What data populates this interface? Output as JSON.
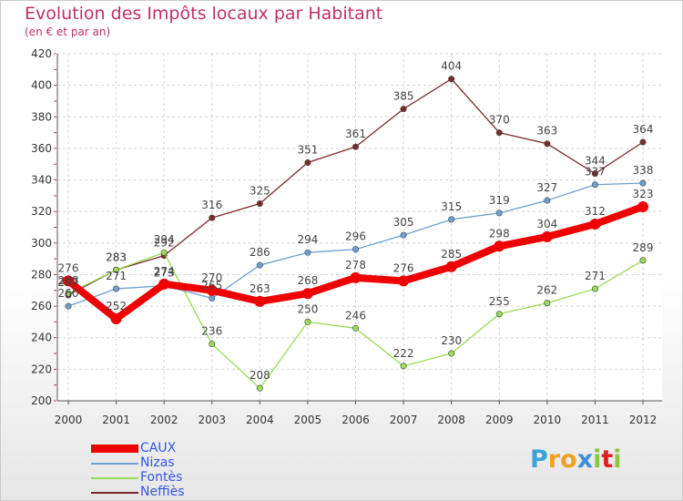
{
  "title": "Evolution des Impôts locaux par Habitant",
  "subtitle": "(en € et par an)",
  "logo": {
    "letters": [
      "P",
      "r",
      "o",
      "x",
      "i",
      "t",
      "i"
    ],
    "colors": [
      "#3aa3d8",
      "#f0a020",
      "#f0a020",
      "#3a8fd8",
      "#8cc63e",
      "#e02020",
      "#8cc63e"
    ]
  },
  "chart_data": {
    "type": "line",
    "x": [
      "2000",
      "2001",
      "2002",
      "2003",
      "2004",
      "2005",
      "2006",
      "2007",
      "2008",
      "2009",
      "2010",
      "2011",
      "2012"
    ],
    "ylim": [
      200,
      420
    ],
    "yticks": [
      "200",
      "220",
      "240",
      "260",
      "280",
      "300",
      "320",
      "340",
      "360",
      "380",
      "400",
      "420"
    ],
    "grid": true,
    "legend_position": "bottom-left",
    "series": [
      {
        "name": "Neffiès",
        "color": "#7a2a2a",
        "values": [
          267,
          283,
          292,
          316,
          325,
          351,
          361,
          385,
          404,
          370,
          363,
          344,
          364
        ],
        "labels": [
          "267",
          "283",
          "292",
          "316",
          "325",
          "351",
          "361",
          "385",
          "404",
          "370",
          "363",
          "344",
          "364"
        ]
      },
      {
        "name": "Fontès",
        "color": "#99dd55",
        "values": [
          268,
          283,
          294,
          236,
          208,
          250,
          246,
          222,
          230,
          255,
          262,
          271,
          289
        ],
        "labels": [
          "268",
          "283",
          "294",
          "236",
          "208",
          "250",
          "246",
          "222",
          "230",
          "255",
          "262",
          "271",
          "289"
        ]
      },
      {
        "name": "Nizas",
        "color": "#6ea0d0",
        "values": [
          260,
          271,
          273,
          265,
          286,
          294,
          296,
          305,
          315,
          319,
          327,
          337,
          338
        ],
        "labels": [
          "260",
          "271",
          "273",
          "265",
          "286",
          "294",
          "296",
          "305",
          "315",
          "319",
          "327",
          "337",
          "338"
        ]
      },
      {
        "name": "CAUX",
        "color": "#ee0000",
        "values": [
          276,
          252,
          274,
          270,
          263,
          268,
          278,
          276,
          285,
          298,
          304,
          312,
          323
        ],
        "labels": [
          "276",
          "252",
          "274",
          "270",
          "263",
          "268",
          "278",
          "276",
          "285",
          "298",
          "304",
          "312",
          "323"
        ]
      }
    ],
    "legend_order": [
      "CAUX",
      "Nizas",
      "Fontès",
      "Neffiès"
    ]
  }
}
